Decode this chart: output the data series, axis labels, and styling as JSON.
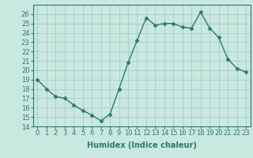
{
  "x": [
    0,
    1,
    2,
    3,
    4,
    5,
    6,
    7,
    8,
    9,
    10,
    11,
    12,
    13,
    14,
    15,
    16,
    17,
    18,
    19,
    20,
    21,
    22,
    23
  ],
  "y": [
    19.0,
    18.0,
    17.2,
    17.0,
    16.3,
    15.7,
    15.2,
    14.6,
    15.3,
    18.0,
    20.8,
    23.2,
    25.6,
    24.8,
    25.0,
    25.0,
    24.6,
    24.5,
    26.2,
    24.5,
    23.5,
    21.2,
    20.2,
    19.8
  ],
  "line_color": "#2d7a6e",
  "marker": "D",
  "markersize": 2.5,
  "linewidth": 1.0,
  "bg_color": "#c8e8e0",
  "grid_color": "#a0c8c0",
  "xlabel": "Humidex (Indice chaleur)",
  "xlabel_fontsize": 7,
  "tick_fontsize": 6,
  "ylim": [
    14,
    27
  ],
  "xlim": [
    -0.5,
    23.5
  ],
  "yticks": [
    14,
    15,
    16,
    17,
    18,
    19,
    20,
    21,
    22,
    23,
    24,
    25,
    26
  ],
  "xticks": [
    0,
    1,
    2,
    3,
    4,
    5,
    6,
    7,
    8,
    9,
    10,
    11,
    12,
    13,
    14,
    15,
    16,
    17,
    18,
    19,
    20,
    21,
    22,
    23
  ]
}
